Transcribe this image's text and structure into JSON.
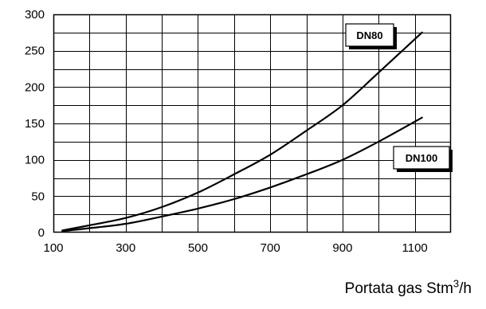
{
  "chart_data": {
    "type": "line",
    "x_axis": {
      "label_prefix": "Portata gas Stm",
      "label_superscript": "3",
      "label_suffix": "/h",
      "min": 100,
      "max": 1200,
      "tick_labels": [
        "100",
        "300",
        "500",
        "700",
        "900",
        "1100"
      ],
      "tick_values": [
        100,
        300,
        500,
        700,
        900,
        1100
      ],
      "grid_step": 100
    },
    "y_axis": {
      "min": 0,
      "max": 300,
      "tick_labels": [
        "0",
        "50",
        "100",
        "150",
        "200",
        "250",
        "300"
      ],
      "tick_values": [
        0,
        50,
        100,
        150,
        200,
        250,
        300
      ],
      "grid_step": 25
    },
    "grid": true,
    "series": [
      {
        "name": "DN80",
        "x": [
          125,
          200,
          300,
          400,
          500,
          600,
          700,
          800,
          900,
          1000,
          1120
        ],
        "y": [
          3,
          10,
          20,
          35,
          55,
          80,
          107,
          140,
          175,
          220,
          275
        ]
      },
      {
        "name": "DN100",
        "x": [
          125,
          200,
          300,
          400,
          500,
          600,
          700,
          800,
          900,
          1000,
          1120
        ],
        "y": [
          2,
          6,
          12,
          22,
          33,
          46,
          62,
          80,
          100,
          125,
          158
        ]
      }
    ],
    "annotations": [
      {
        "text": "DN80",
        "series": "DN80"
      },
      {
        "text": "DN100",
        "series": "DN100"
      }
    ],
    "colors": {
      "line": "#000000",
      "grid": "#000000",
      "background": "#ffffff"
    }
  }
}
